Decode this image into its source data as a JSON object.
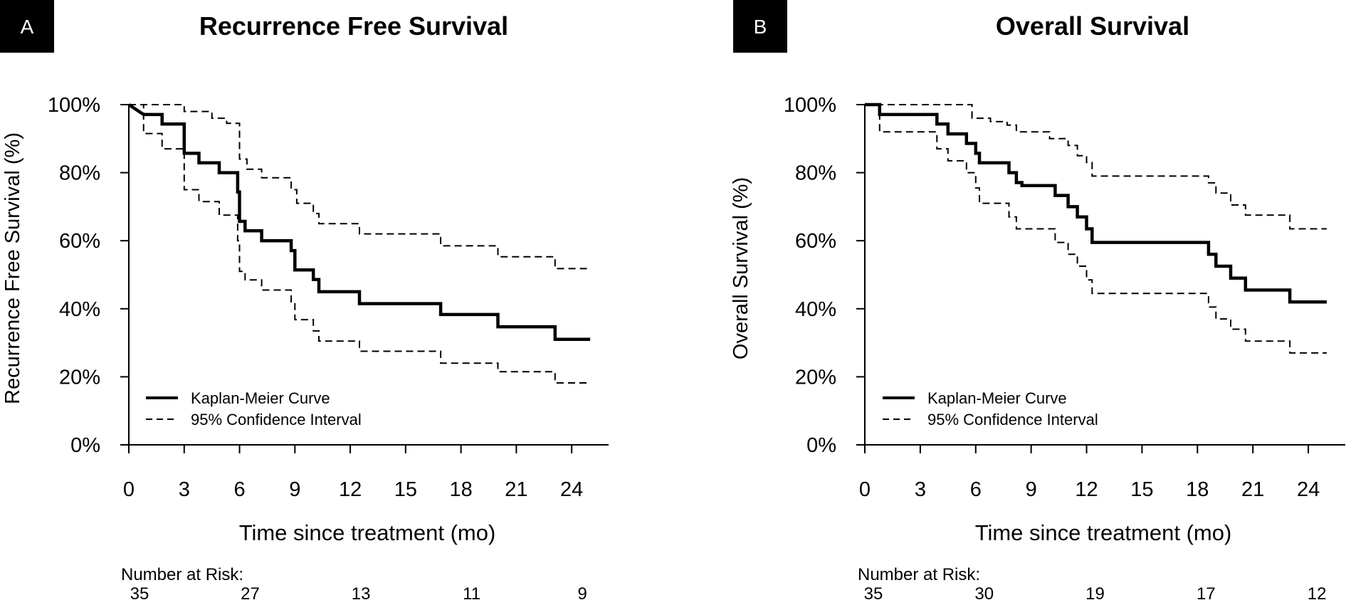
{
  "panels": [
    {
      "letter": "A",
      "title": "Recurrence Free Survival",
      "ylabel": "Recurrence Free Survival (%)",
      "xlabel": "Time since treatment (mo)",
      "legend": {
        "km": "Kaplan-Meier Curve",
        "ci": "95% Confidence Interval"
      },
      "risk_label": "Number at Risk:",
      "risk_values": [
        "35",
        "27",
        "13",
        "11",
        "9"
      ]
    },
    {
      "letter": "B",
      "title": "Overall Survival",
      "ylabel": "Overall Survival (%)",
      "xlabel": "Time since treatment (mo)",
      "legend": {
        "km": "Kaplan-Meier Curve",
        "ci": "95% Confidence Interval"
      },
      "risk_label": "Number at Risk:",
      "risk_values": [
        "35",
        "30",
        "19",
        "17",
        "12"
      ]
    }
  ],
  "chart_data": [
    {
      "type": "line",
      "title": "Recurrence Free Survival",
      "xlabel": "Time since treatment (mo)",
      "ylabel": "Recurrence Free Survival (%)",
      "xlim": [
        0,
        26
      ],
      "ylim": [
        0,
        100
      ],
      "xticks": [
        "0",
        "3",
        "6",
        "9",
        "12",
        "15",
        "18",
        "21",
        "24"
      ],
      "yticks": [
        "0%",
        "20%",
        "40%",
        "60%",
        "80%",
        "100%"
      ],
      "legend_position": "bottom-left",
      "risk_times": [
        0,
        6,
        12,
        18,
        24
      ],
      "series": [
        {
          "name": "Kaplan-Meier Curve",
          "style": "solid",
          "points": [
            [
              0,
              100
            ],
            [
              0.8,
              97.1
            ],
            [
              1.8,
              97.1
            ],
            [
              1.8,
              94.3
            ],
            [
              3.0,
              94.3
            ],
            [
              3.0,
              85.7
            ],
            [
              3.8,
              85.7
            ],
            [
              3.8,
              82.9
            ],
            [
              4.9,
              82.9
            ],
            [
              4.9,
              80.0
            ],
            [
              5.9,
              80.0
            ],
            [
              5.9,
              74.3
            ],
            [
              6.0,
              74.3
            ],
            [
              6.0,
              65.7
            ],
            [
              6.3,
              65.7
            ],
            [
              6.3,
              62.9
            ],
            [
              7.2,
              62.9
            ],
            [
              7.2,
              60.0
            ],
            [
              8.8,
              60.0
            ],
            [
              8.8,
              57.1
            ],
            [
              9.0,
              57.1
            ],
            [
              9.0,
              51.4
            ],
            [
              10.0,
              51.4
            ],
            [
              10.0,
              48.6
            ],
            [
              10.3,
              48.6
            ],
            [
              10.3,
              45.0
            ],
            [
              12.5,
              45.0
            ],
            [
              12.5,
              41.5
            ],
            [
              16.9,
              41.5
            ],
            [
              16.9,
              38.3
            ],
            [
              20.0,
              38.3
            ],
            [
              20.0,
              34.7
            ],
            [
              23.1,
              34.7
            ],
            [
              23.1,
              31.0
            ],
            [
              25,
              31.0
            ]
          ]
        },
        {
          "name": "95% Confidence Interval (upper)",
          "style": "dashed",
          "points": [
            [
              0,
              100
            ],
            [
              3.0,
              100
            ],
            [
              3.0,
              98.0
            ],
            [
              4.5,
              98.0
            ],
            [
              4.5,
              96.0
            ],
            [
              5.3,
              96.0
            ],
            [
              5.3,
              94.5
            ],
            [
              6.0,
              94.5
            ],
            [
              6.0,
              84.0
            ],
            [
              6.4,
              84.0
            ],
            [
              6.4,
              81.0
            ],
            [
              7.2,
              81.0
            ],
            [
              7.2,
              78.5
            ],
            [
              8.8,
              78.5
            ],
            [
              8.8,
              75.0
            ],
            [
              9.1,
              75.0
            ],
            [
              9.1,
              71.0
            ],
            [
              10.0,
              71.0
            ],
            [
              10.0,
              68.0
            ],
            [
              10.3,
              68.0
            ],
            [
              10.3,
              65.0
            ],
            [
              12.5,
              65.0
            ],
            [
              12.5,
              62.0
            ],
            [
              16.9,
              62.0
            ],
            [
              16.9,
              58.5
            ],
            [
              20.0,
              58.5
            ],
            [
              20.0,
              55.3
            ],
            [
              23.1,
              55.3
            ],
            [
              23.1,
              51.8
            ],
            [
              25,
              51.8
            ]
          ]
        },
        {
          "name": "95% Confidence Interval (lower)",
          "style": "dashed",
          "points": [
            [
              0,
              100
            ],
            [
              0.8,
              100
            ],
            [
              0.8,
              91.5
            ],
            [
              1.8,
              91.5
            ],
            [
              1.8,
              87.0
            ],
            [
              3.0,
              87.0
            ],
            [
              3.0,
              75.0
            ],
            [
              3.8,
              75.0
            ],
            [
              3.8,
              71.5
            ],
            [
              4.9,
              71.5
            ],
            [
              4.9,
              67.5
            ],
            [
              5.9,
              67.5
            ],
            [
              5.9,
              60.0
            ],
            [
              6.0,
              60.0
            ],
            [
              6.0,
              51.0
            ],
            [
              6.3,
              51.0
            ],
            [
              6.3,
              48.5
            ],
            [
              7.2,
              48.5
            ],
            [
              7.2,
              45.5
            ],
            [
              8.8,
              45.5
            ],
            [
              8.8,
              42.0
            ],
            [
              9.0,
              42.0
            ],
            [
              9.0,
              36.8
            ],
            [
              10.0,
              36.8
            ],
            [
              10.0,
              33.5
            ],
            [
              10.3,
              33.5
            ],
            [
              10.3,
              30.5
            ],
            [
              12.5,
              30.5
            ],
            [
              12.5,
              27.5
            ],
            [
              16.9,
              27.5
            ],
            [
              16.9,
              24.0
            ],
            [
              20.0,
              24.0
            ],
            [
              20.0,
              21.5
            ],
            [
              23.1,
              21.5
            ],
            [
              23.1,
              18.2
            ],
            [
              25,
              18.2
            ]
          ]
        }
      ]
    },
    {
      "type": "line",
      "title": "Overall Survival",
      "xlabel": "Time since treatment (mo)",
      "ylabel": "Overall Survival (%)",
      "xlim": [
        0,
        26
      ],
      "ylim": [
        0,
        100
      ],
      "xticks": [
        "0",
        "3",
        "6",
        "9",
        "12",
        "15",
        "18",
        "21",
        "24"
      ],
      "yticks": [
        "0%",
        "20%",
        "40%",
        "60%",
        "80%",
        "100%"
      ],
      "legend_position": "bottom-left",
      "risk_times": [
        0,
        6,
        12,
        18,
        24
      ],
      "series": [
        {
          "name": "Kaplan-Meier Curve",
          "style": "solid",
          "points": [
            [
              0,
              100
            ],
            [
              0.8,
              100
            ],
            [
              0.8,
              97.1
            ],
            [
              3.9,
              97.1
            ],
            [
              3.9,
              94.3
            ],
            [
              4.5,
              94.3
            ],
            [
              4.5,
              91.4
            ],
            [
              5.5,
              91.4
            ],
            [
              5.5,
              88.6
            ],
            [
              6.0,
              88.6
            ],
            [
              6.0,
              85.7
            ],
            [
              6.2,
              85.7
            ],
            [
              6.2,
              82.9
            ],
            [
              7.8,
              82.9
            ],
            [
              7.8,
              80.0
            ],
            [
              8.2,
              80.0
            ],
            [
              8.2,
              77.1
            ],
            [
              8.5,
              77.1
            ],
            [
              8.5,
              76.2
            ],
            [
              10.3,
              76.2
            ],
            [
              10.3,
              73.3
            ],
            [
              11.0,
              73.3
            ],
            [
              11.0,
              70.0
            ],
            [
              11.5,
              70.0
            ],
            [
              11.5,
              67.0
            ],
            [
              12.0,
              67.0
            ],
            [
              12.0,
              63.5
            ],
            [
              12.3,
              63.5
            ],
            [
              12.3,
              59.5
            ],
            [
              18.6,
              59.5
            ],
            [
              18.6,
              56.0
            ],
            [
              19.0,
              56.0
            ],
            [
              19.0,
              52.5
            ],
            [
              19.8,
              52.5
            ],
            [
              19.8,
              49.0
            ],
            [
              20.6,
              49.0
            ],
            [
              20.6,
              45.5
            ],
            [
              23.0,
              45.5
            ],
            [
              23.0,
              42.0
            ],
            [
              25,
              42.0
            ]
          ]
        },
        {
          "name": "95% Confidence Interval (upper)",
          "style": "dashed",
          "points": [
            [
              0,
              100
            ],
            [
              5.8,
              100
            ],
            [
              5.8,
              96.0
            ],
            [
              6.8,
              96.0
            ],
            [
              6.8,
              95.0
            ],
            [
              7.7,
              95.0
            ],
            [
              7.7,
              94.0
            ],
            [
              8.2,
              94.0
            ],
            [
              8.2,
              92.0
            ],
            [
              10.0,
              92.0
            ],
            [
              10.0,
              90.0
            ],
            [
              11.0,
              90.0
            ],
            [
              11.0,
              88.0
            ],
            [
              11.5,
              88.0
            ],
            [
              11.5,
              85.0
            ],
            [
              12.0,
              85.0
            ],
            [
              12.0,
              83.0
            ],
            [
              12.3,
              83.0
            ],
            [
              12.3,
              79.0
            ],
            [
              18.6,
              79.0
            ],
            [
              18.6,
              77.0
            ],
            [
              19.0,
              77.0
            ],
            [
              19.0,
              74.0
            ],
            [
              19.8,
              74.0
            ],
            [
              19.8,
              70.5
            ],
            [
              20.6,
              70.5
            ],
            [
              20.6,
              67.5
            ],
            [
              23.0,
              67.5
            ],
            [
              23.0,
              63.5
            ],
            [
              25,
              63.5
            ]
          ]
        },
        {
          "name": "95% Confidence Interval (lower)",
          "style": "dashed",
          "points": [
            [
              0,
              100
            ],
            [
              0.8,
              100
            ],
            [
              0.8,
              92.0
            ],
            [
              3.9,
              92.0
            ],
            [
              3.9,
              87.0
            ],
            [
              4.5,
              87.0
            ],
            [
              4.5,
              83.5
            ],
            [
              5.5,
              83.5
            ],
            [
              5.5,
              80.0
            ],
            [
              6.0,
              80.0
            ],
            [
              6.0,
              75.5
            ],
            [
              6.2,
              75.5
            ],
            [
              6.2,
              71.0
            ],
            [
              7.8,
              71.0
            ],
            [
              7.8,
              67.0
            ],
            [
              8.2,
              67.0
            ],
            [
              8.2,
              63.5
            ],
            [
              10.3,
              63.5
            ],
            [
              10.3,
              59.5
            ],
            [
              11.0,
              59.5
            ],
            [
              11.0,
              56.0
            ],
            [
              11.5,
              56.0
            ],
            [
              11.5,
              52.5
            ],
            [
              12.0,
              52.5
            ],
            [
              12.0,
              48.5
            ],
            [
              12.3,
              48.5
            ],
            [
              12.3,
              44.5
            ],
            [
              18.6,
              44.5
            ],
            [
              18.6,
              40.5
            ],
            [
              19.0,
              40.5
            ],
            [
              19.0,
              37.0
            ],
            [
              19.8,
              37.0
            ],
            [
              19.8,
              34.0
            ],
            [
              20.6,
              34.0
            ],
            [
              20.6,
              30.5
            ],
            [
              23.0,
              30.5
            ],
            [
              23.0,
              27.0
            ],
            [
              25,
              27.0
            ]
          ]
        }
      ]
    }
  ]
}
